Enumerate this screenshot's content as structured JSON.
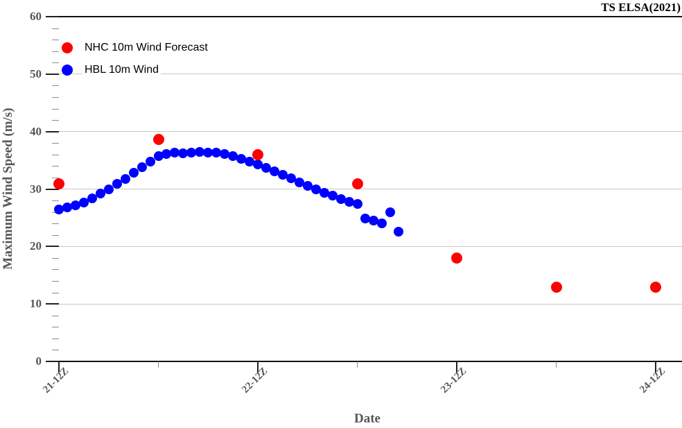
{
  "title": "TS ELSA(2021)",
  "legend": {
    "items": [
      {
        "label": "NHC 10m Wind Forecast",
        "marker": "red-circle",
        "color": "#ff0000"
      },
      {
        "label": "HBL 10m Wind",
        "marker": "blue-circle",
        "color": "#0000ff"
      }
    ]
  },
  "chart_data": {
    "type": "scatter",
    "title": "TS ELSA(2021)",
    "xlabel": "Date",
    "ylabel": "Maximum Wind Speed (m/s)",
    "ylim": [
      0,
      60
    ],
    "y_major_ticks": [
      0,
      10,
      20,
      30,
      40,
      50,
      60
    ],
    "y_minor_step": 2,
    "grid": "horizontal gridlines at major y ticks",
    "legend_position": "upper left inside",
    "x_axis_unit": "hours since 21-12Z",
    "x_major_ticks": [
      {
        "hours": 0,
        "label": "21-12Z"
      },
      {
        "hours": 24,
        "label": "22-12Z"
      },
      {
        "hours": 48,
        "label": "23-12Z"
      },
      {
        "hours": 72,
        "label": "24-12Z"
      }
    ],
    "x_minor_tick_hours": [
      12,
      36,
      60
    ],
    "series": [
      {
        "name": "NHC 10m Wind Forecast",
        "color": "#ff0000",
        "marker": "circle",
        "marker_px": 16,
        "x_hours": [
          0,
          12,
          24,
          36,
          48,
          60,
          72
        ],
        "values": [
          30.9,
          38.6,
          36.0,
          30.9,
          18.0,
          12.9,
          12.9
        ]
      },
      {
        "name": "HBL 10m Wind",
        "color": "#0000ff",
        "marker": "circle",
        "marker_px": 14,
        "x_hours": [
          0,
          1,
          2,
          3,
          4,
          5,
          6,
          7,
          8,
          9,
          10,
          11,
          12,
          13,
          14,
          15,
          16,
          17,
          18,
          19,
          20,
          21,
          22,
          23,
          24,
          25,
          26,
          27,
          28,
          29,
          30,
          31,
          32,
          33,
          34,
          35,
          36,
          37,
          38,
          39,
          40,
          41
        ],
        "values": [
          26.4,
          26.8,
          27.2,
          27.7,
          28.4,
          29.2,
          30.0,
          30.9,
          31.8,
          32.8,
          33.8,
          34.8,
          35.7,
          36.1,
          36.3,
          36.2,
          36.3,
          36.4,
          36.3,
          36.3,
          36.1,
          35.7,
          35.3,
          34.8,
          34.3,
          33.7,
          33.1,
          32.5,
          31.9,
          31.2,
          30.6,
          29.9,
          29.3,
          28.8,
          28.3,
          27.8,
          27.4,
          24.9,
          24.5,
          24.0,
          25.9,
          22.6
        ]
      }
    ]
  }
}
